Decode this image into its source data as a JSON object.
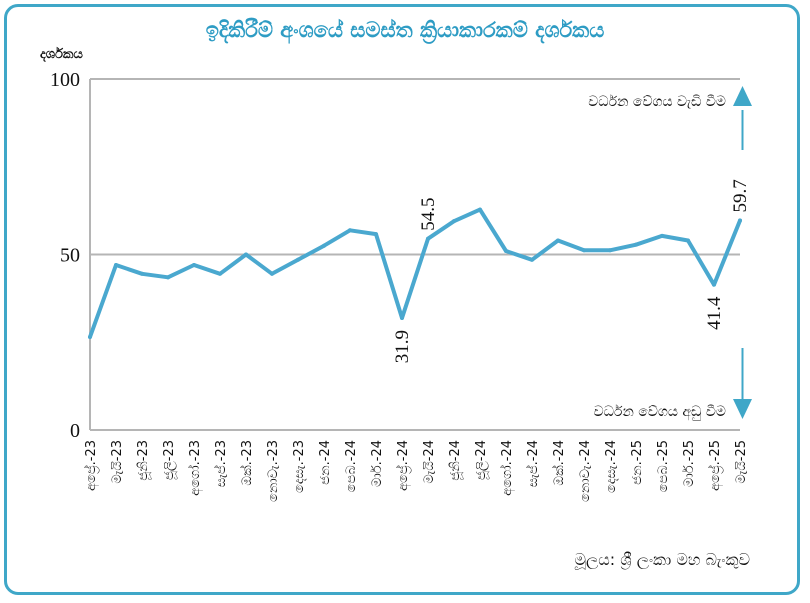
{
  "chart_data": {
    "type": "line",
    "title": "ඉදිකිරීම් අංශයේ සමස්ත ක්‍රියාකාරකම් දර්ශකය",
    "ylabel": "දර්ශකය",
    "xlabel": "",
    "ylim": [
      0,
      100
    ],
    "yticks": [
      "0",
      "50",
      "100"
    ],
    "grid": "horizontal at 50 and 100",
    "legend": "none",
    "categories": [
      "අප්‍රේ.-23",
      "මැයි-23",
      "ජූනි-23",
      "ජූලි-23",
      "අගෝ.-23",
      "සැප්.-23",
      "ඔක්.-23",
      "නොවැ.-23",
      "දෙසැ.-23",
      "ජන.-24",
      "පෙබ.-24",
      "මාර්.-24",
      "අප්‍රේ.-24",
      "මැයි-24",
      "ජූනි-24",
      "ජූලි-24",
      "අගෝ.-24",
      "සැප්.-24",
      "ඔක්.-24",
      "නොවැ.-24",
      "දෙසැ.-24",
      "ජන.-25",
      "පෙබ.-25",
      "මාර්.-25",
      "අප්‍රේ.-25",
      "මැයි-25"
    ],
    "series": [
      {
        "color": "#4aa8cf",
        "values": [
          26.5,
          47.0,
          44.5,
          43.5,
          47.0,
          44.5,
          50.0,
          44.5,
          48.5,
          52.5,
          56.9,
          55.8,
          31.9,
          54.5,
          59.5,
          62.8,
          51.0,
          48.5,
          54.0,
          51.2,
          51.2,
          52.8,
          55.3,
          54.0,
          41.4,
          59.7
        ]
      }
    ],
    "data_labels": [
      {
        "index": 12,
        "text": "31.9",
        "position": "below"
      },
      {
        "index": 13,
        "text": "54.5",
        "position": "above"
      },
      {
        "index": 24,
        "text": "41.4",
        "position": "below"
      },
      {
        "index": 25,
        "text": "59.7",
        "position": "above"
      }
    ],
    "annotations": {
      "up": "වර්ධන වේගය වැඩි වීම",
      "down": "වර්ධන වේගය අඩු වීම"
    },
    "source": "මූලය: ශ්‍රී ලංකා මහ බැංකුව"
  },
  "colors": {
    "accent": "#3fa7c8",
    "line": "#4aa8cf",
    "grid": "#b5b5b5"
  }
}
